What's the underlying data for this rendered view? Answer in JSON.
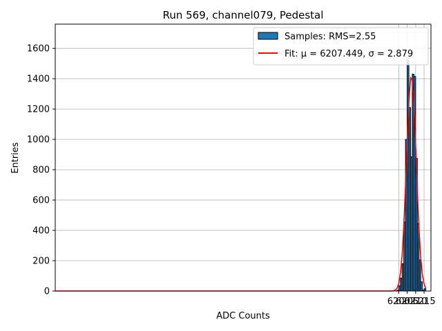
{
  "chart_data": {
    "type": "bar",
    "title": "Run 569, channel079, Pedestal",
    "xlabel": "ADC Counts",
    "ylabel": "Entries",
    "xlim": [
      5996.95,
      6219.05
    ],
    "ylim": [
      0,
      1760
    ],
    "grid": true,
    "x_ticks": [
      6200,
      6205,
      6210,
      6215
    ],
    "y_ticks": [
      0,
      200,
      400,
      600,
      800,
      1000,
      1200,
      1400,
      1600
    ],
    "histogram": {
      "name": "Samples: RMS=2.55",
      "color": "#1f77b4",
      "bin_width": 1,
      "bin_left_edges": [
        6199,
        6200,
        6201,
        6202,
        6203,
        6204,
        6205,
        6206,
        6207,
        6208,
        6209,
        6210,
        6211,
        6212,
        6213,
        6214,
        6215
      ],
      "values": [
        5,
        35,
        85,
        180,
        455,
        1000,
        1520,
        1210,
        885,
        1430,
        1415,
        875,
        445,
        205,
        60,
        5,
        15
      ]
    },
    "fit": {
      "name": "Fit: μ = 6207.449, σ = 2.879",
      "label_prefix": "Fit: ",
      "mu_label": "μ = 6207.449",
      "sigma_label": "σ = 2.879",
      "color": "#ff0000",
      "mu": 6207.449,
      "sigma": 2.879,
      "amplitude": 1420,
      "x_range": [
        5997,
        6216
      ]
    },
    "legend_position": "top-right"
  }
}
